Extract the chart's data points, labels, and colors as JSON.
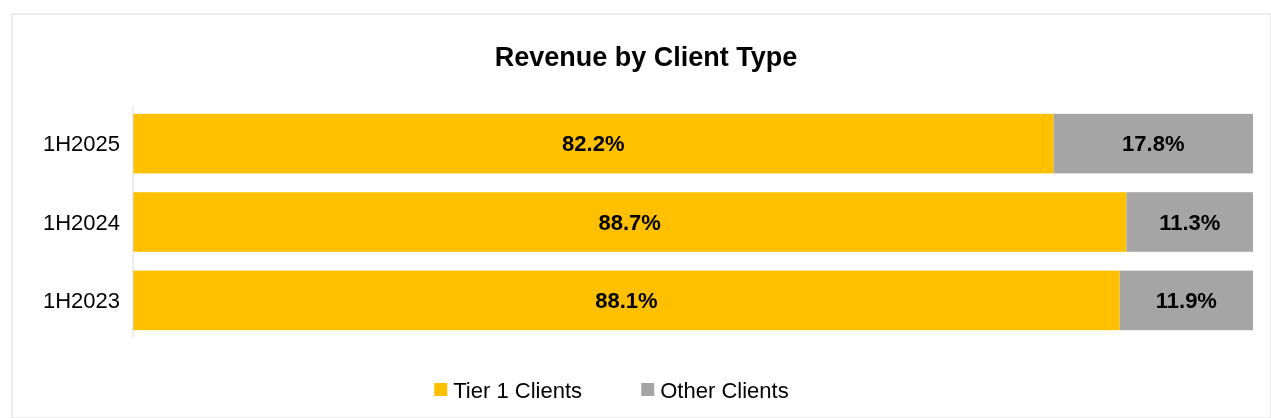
{
  "chart_data": {
    "type": "bar",
    "title": "Revenue by Client Type",
    "orientation": "horizontal",
    "stacked": true,
    "categories": [
      "1H2025",
      "1H2024",
      "1H2023"
    ],
    "series": [
      {
        "name": "Tier 1 Clients",
        "color": "#ffc000",
        "values": [
          82.2,
          88.7,
          88.1
        ],
        "value_labels": [
          "82.2%",
          "88.7%",
          "88.1%"
        ]
      },
      {
        "name": "Other Clients",
        "color": "#a5a5a5",
        "values": [
          17.8,
          11.3,
          11.9
        ],
        "value_labels": [
          "17.8%",
          "11.3%",
          "11.9%"
        ]
      }
    ],
    "legend": "bottom",
    "tick_labels": "y"
  }
}
